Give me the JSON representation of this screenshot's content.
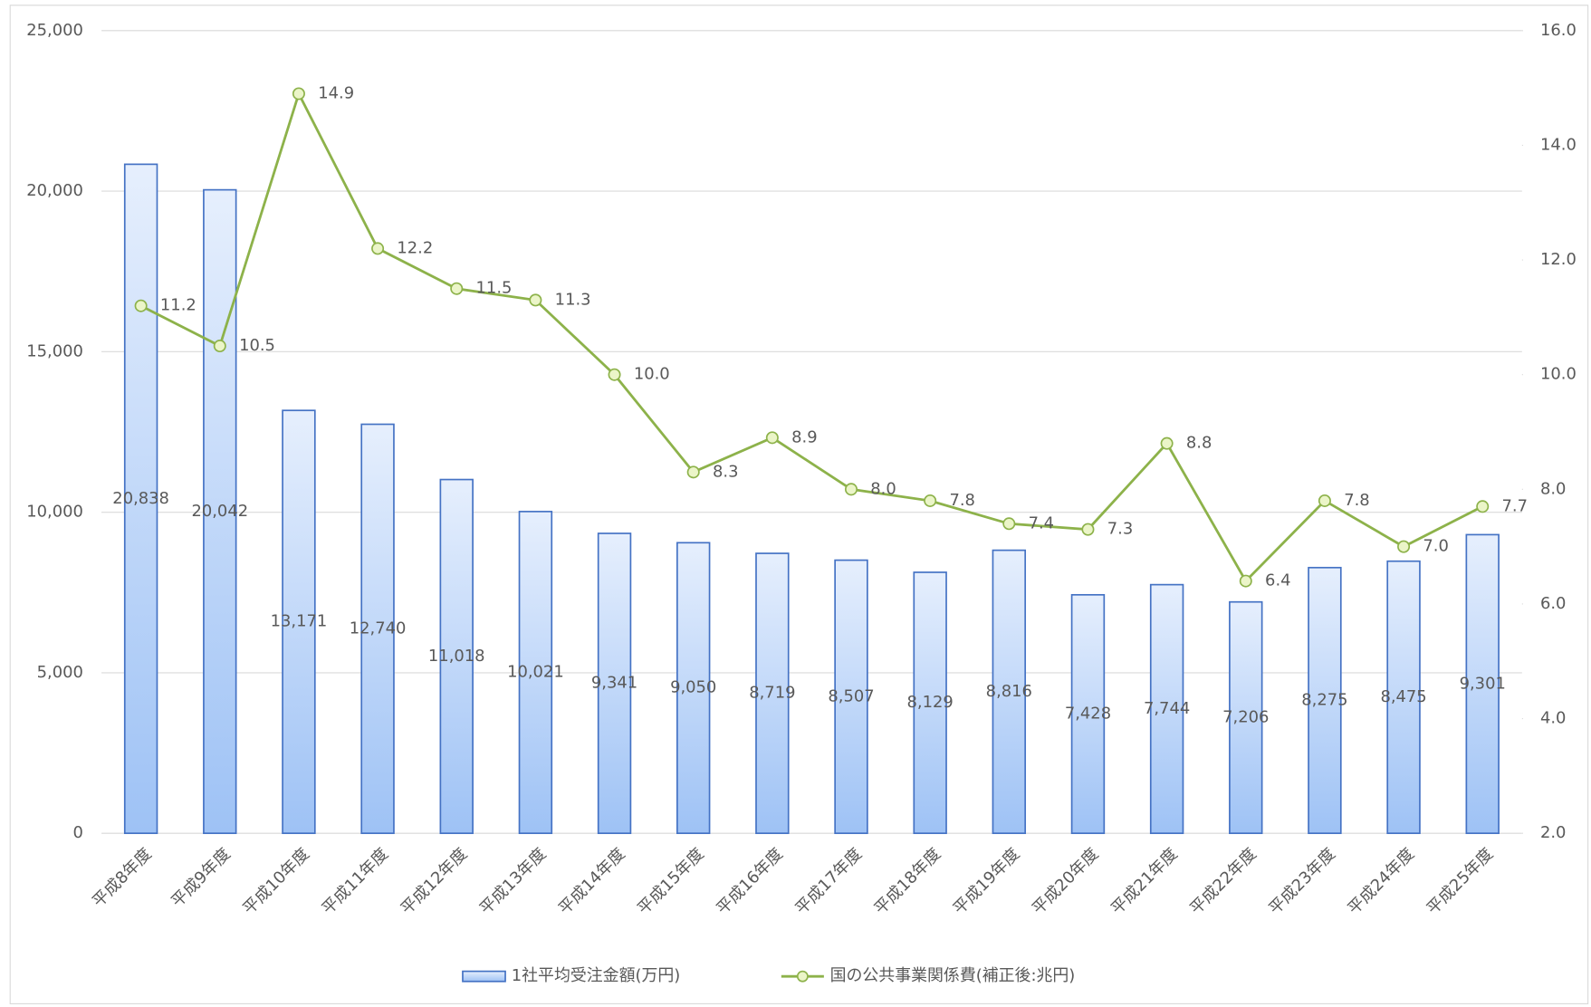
{
  "chart_data": {
    "type": "bar-line",
    "categories": [
      "平成8年度",
      "平成9年度",
      "平成10年度",
      "平成11年度",
      "平成12年度",
      "平成13年度",
      "平成14年度",
      "平成15年度",
      "平成16年度",
      "平成17年度",
      "平成18年度",
      "平成19年度",
      "平成20年度",
      "平成21年度",
      "平成22年度",
      "平成23年度",
      "平成24年度",
      "平成25年度"
    ],
    "series": [
      {
        "name": "1社平均受注金額(万円)",
        "type": "bar",
        "color": "#4472c4",
        "values": [
          20838,
          20042,
          13171,
          12740,
          11018,
          10021,
          9341,
          9050,
          8719,
          8507,
          8129,
          8816,
          7428,
          7744,
          7206,
          8275,
          8475,
          9301
        ],
        "value_labels": [
          "20,838",
          "20,042",
          "13,171",
          "12,740",
          "11,018",
          "10,021",
          "9,341",
          "9,050",
          "8,719",
          "8,507",
          "8,129",
          "8,816",
          "7,428",
          "7,744",
          "7,206",
          "8,275",
          "8,475",
          "9,301"
        ]
      },
      {
        "name": "国の公共事業関係費(補正後:兆円)",
        "type": "line",
        "axis": "y2",
        "color": "#8db24a",
        "values": [
          11.2,
          10.5,
          14.9,
          12.2,
          11.5,
          11.3,
          10.0,
          8.3,
          8.9,
          8.0,
          7.8,
          7.4,
          7.3,
          8.8,
          6.4,
          7.8,
          7.0,
          7.7
        ],
        "value_labels": [
          "11.2",
          "10.5",
          "14.9",
          "12.2",
          "11.5",
          "11.3",
          "10.0",
          "8.3",
          "8.9",
          "8.0",
          "7.8",
          "7.4",
          "7.3",
          "8.8",
          "6.4",
          "7.8",
          "7.0",
          "7.7"
        ]
      }
    ],
    "ylim": [
      0,
      25000
    ],
    "yticks": [
      0,
      {
        "value": 5000,
        "label": "5,000"
      },
      {
        "value": 10000,
        "label": "10,000"
      },
      {
        "value": 15000,
        "label": "15,000"
      },
      {
        "value": 20000,
        "label": "20,000"
      },
      {
        "value": 25000,
        "label": "25,000"
      }
    ],
    "y2lim": [
      2,
      16
    ],
    "y2ticks": [
      {
        "value": 2,
        "label": "2.0"
      },
      {
        "value": 4,
        "label": "4.0"
      },
      {
        "value": 6,
        "label": "6.0"
      },
      {
        "value": 8,
        "label": "8.0"
      },
      {
        "value": 10,
        "label": "10.0"
      },
      {
        "value": 12,
        "label": "12.0"
      },
      {
        "value": 14,
        "label": "14.0"
      },
      {
        "value": 16,
        "label": "16.0"
      }
    ],
    "grid": true,
    "legend": "bottom"
  }
}
